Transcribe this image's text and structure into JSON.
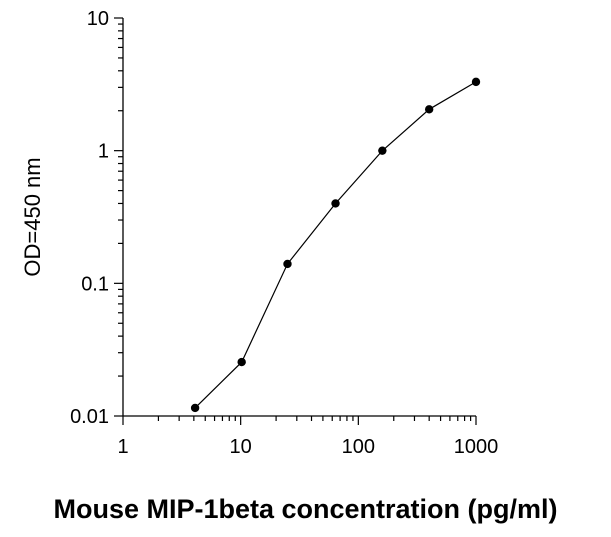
{
  "chart_data": {
    "type": "line",
    "title": "",
    "xlabel": "Mouse MIP-1beta concentration (pg/ml)",
    "ylabel": "OD=450 nm",
    "xscale": "log",
    "yscale": "log",
    "xlim": [
      1,
      1000
    ],
    "ylim": [
      0.01,
      10
    ],
    "grid": false,
    "legend": "none",
    "x_ticks": [
      {
        "value": 1,
        "label": "1"
      },
      {
        "value": 10,
        "label": "10"
      },
      {
        "value": 100,
        "label": "100"
      },
      {
        "value": 1000,
        "label": "1000"
      }
    ],
    "y_ticks": [
      {
        "value": 0.01,
        "label": "0.01"
      },
      {
        "value": 0.1,
        "label": "0.1"
      },
      {
        "value": 1,
        "label": "1"
      },
      {
        "value": 10,
        "label": "10"
      }
    ],
    "series": [
      {
        "x": [
          4.1,
          10.2,
          25,
          64,
          160,
          400,
          1000
        ],
        "y": [
          0.0115,
          0.0255,
          0.14,
          0.4,
          1.0,
          2.05,
          3.3
        ]
      }
    ],
    "colors": {
      "line": "#000000",
      "marker": "#000000",
      "axis": "#000000"
    }
  }
}
